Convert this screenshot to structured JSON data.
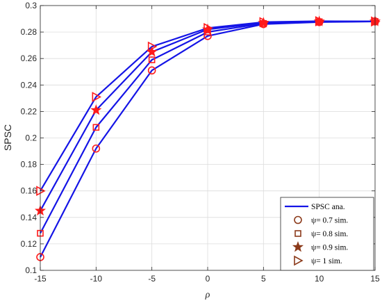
{
  "chart_data": {
    "type": "line",
    "xlabel": "ρ",
    "ylabel": "SPSC",
    "xlim": [
      -15,
      15
    ],
    "ylim": [
      0.1,
      0.3
    ],
    "x_ticks": [
      "-15",
      "-10",
      "-5",
      "0",
      "5",
      "10",
      "15"
    ],
    "y_ticks": [
      "0.1",
      "0.12",
      "0.14",
      "0.16",
      "0.18",
      "0.2",
      "0.22",
      "0.24",
      "0.26",
      "0.28",
      "0.3"
    ],
    "grid": true,
    "legend_position": "bottom-right",
    "x": [
      -15,
      -10,
      -5,
      0,
      5,
      10,
      15
    ],
    "colors": {
      "line": "#1414e6",
      "marker_sim": "#8b3a1a",
      "marker_hl": "#ff1a1a",
      "axis": "#262626",
      "grid": "#dcdcdc"
    },
    "series": [
      {
        "psi": "0.7",
        "marker": "circle",
        "values": [
          0.11,
          0.192,
          0.251,
          0.277,
          0.286,
          0.2875,
          0.288
        ]
      },
      {
        "psi": "0.8",
        "marker": "square",
        "values": [
          0.128,
          0.208,
          0.259,
          0.28,
          0.2865,
          0.2878,
          0.288
        ]
      },
      {
        "psi": "0.9",
        "marker": "star",
        "values": [
          0.145,
          0.221,
          0.265,
          0.282,
          0.287,
          0.288,
          0.288
        ]
      },
      {
        "psi": "1",
        "marker": "triangle-right",
        "values": [
          0.16,
          0.231,
          0.269,
          0.283,
          0.2875,
          0.2882,
          0.288
        ]
      }
    ],
    "legend": [
      {
        "label": "SPSC ana.",
        "kind": "line"
      },
      {
        "label": "ψ= 0.7 sim.",
        "kind": "circle"
      },
      {
        "label": "ψ= 0.8 sim.",
        "kind": "square"
      },
      {
        "label": "ψ= 0.9 sim.",
        "kind": "star"
      },
      {
        "label": "ψ= 1 sim.",
        "kind": "triangle-right"
      }
    ]
  }
}
